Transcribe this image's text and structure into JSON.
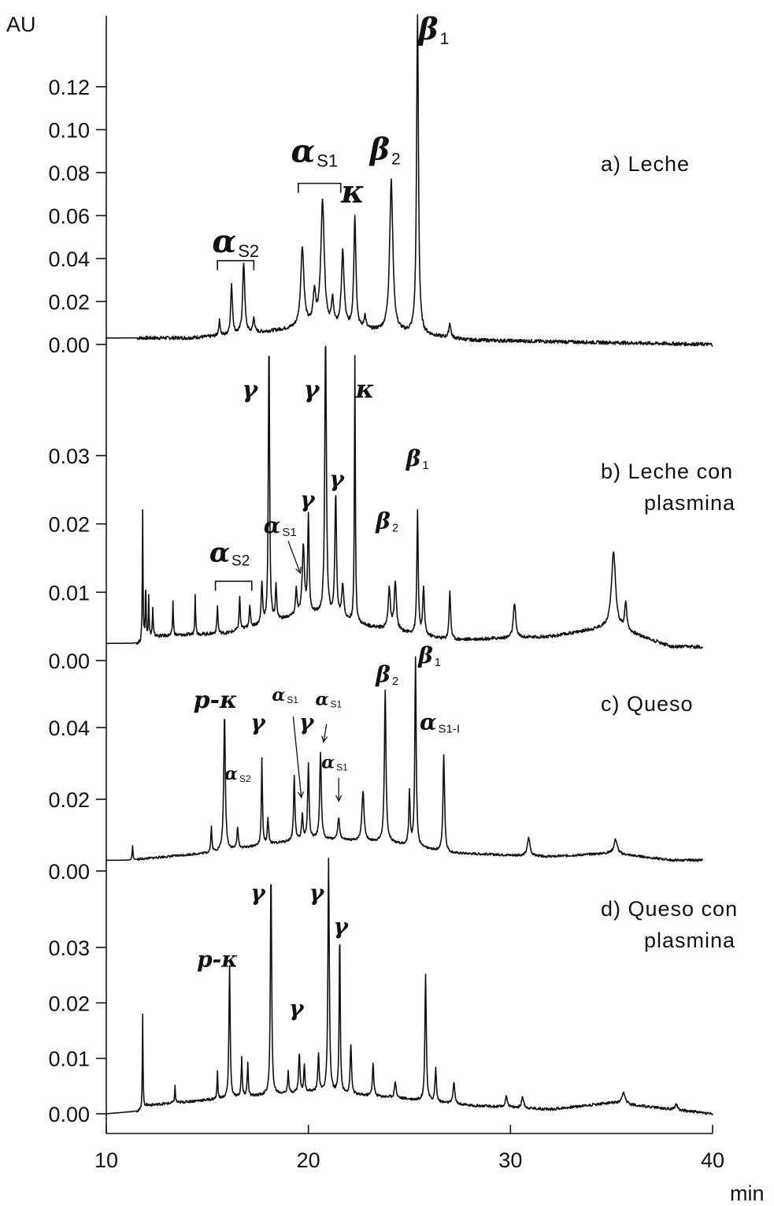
{
  "chart_data": {
    "type": "line",
    "y_unit": "AU",
    "x_unit": "min",
    "xlim": [
      10,
      40
    ],
    "x_ticks": [
      "10",
      "20",
      "30",
      "40"
    ],
    "grid": false,
    "panels": [
      {
        "id": "a",
        "title": [
          "a) Leche"
        ],
        "y_ticks": [
          "0.00",
          "0.02",
          "0.04",
          "0.06",
          "0.08",
          "0.10",
          "0.12"
        ],
        "y_tick_values": [
          0,
          0.02,
          0.04,
          0.06,
          0.08,
          0.1,
          0.12
        ],
        "ylim": [
          0,
          0.135
        ],
        "baseline": [
          [
            10,
            0.003
          ],
          [
            14,
            0.003
          ],
          [
            16,
            0.004
          ],
          [
            20,
            0.008
          ],
          [
            24,
            0.006
          ],
          [
            28,
            0.002
          ],
          [
            40,
            0.0
          ]
        ],
        "peaks": [
          {
            "x": 15.6,
            "y": 0.007,
            "w": 0.06
          },
          {
            "x": 16.2,
            "y": 0.023,
            "w": 0.07
          },
          {
            "x": 16.8,
            "y": 0.033,
            "w": 0.08
          },
          {
            "x": 17.3,
            "y": 0.007,
            "w": 0.06
          },
          {
            "x": 19.7,
            "y": 0.037,
            "w": 0.12
          },
          {
            "x": 20.3,
            "y": 0.015,
            "w": 0.1
          },
          {
            "x": 20.7,
            "y": 0.058,
            "w": 0.13
          },
          {
            "x": 21.2,
            "y": 0.012,
            "w": 0.08
          },
          {
            "x": 21.7,
            "y": 0.035,
            "w": 0.1
          },
          {
            "x": 22.3,
            "y": 0.052,
            "w": 0.08
          },
          {
            "x": 22.8,
            "y": 0.006,
            "w": 0.07
          },
          {
            "x": 24.1,
            "y": 0.07,
            "w": 0.12
          },
          {
            "x": 25.4,
            "y": 0.148,
            "w": 0.07
          },
          {
            "x": 27.0,
            "y": 0.007,
            "w": 0.07
          }
        ],
        "labels": [
          {
            "text": "α",
            "sub": "S2",
            "x": 16.4,
            "y": 0.043,
            "size": 40
          },
          {
            "text": "α",
            "sub": "S1",
            "x": 20.3,
            "y": 0.085,
            "size": 40
          },
          {
            "text": "κ",
            "sub": "",
            "x": 22.2,
            "y": 0.066,
            "size": 40
          },
          {
            "text": "β",
            "sub": "2",
            "x": 23.8,
            "y": 0.086,
            "size": 38
          },
          {
            "text": "β",
            "sub": "1",
            "x": 26.2,
            "y": 0.142,
            "size": 38
          }
        ],
        "brackets": [
          {
            "x1": 15.5,
            "x2": 17.3,
            "y": 0.039
          },
          {
            "x1": 19.5,
            "x2": 21.6,
            "y": 0.075
          }
        ],
        "arrows": []
      },
      {
        "id": "b",
        "title": [
          "b) Leche con",
          "plasmina"
        ],
        "y_ticks": [
          "0.00",
          "0.01",
          "0.02",
          "0.03"
        ],
        "y_tick_values": [
          0,
          0.01,
          0.02,
          0.03
        ],
        "ylim": [
          0,
          0.0395
        ],
        "baseline": [
          [
            10,
            0.0025
          ],
          [
            11.7,
            0.0025
          ],
          [
            12,
            0.0035
          ],
          [
            16,
            0.004
          ],
          [
            20,
            0.007
          ],
          [
            23,
            0.005
          ],
          [
            27,
            0.003
          ],
          [
            32,
            0.0035
          ],
          [
            35,
            0.005
          ],
          [
            38,
            0.002
          ],
          [
            39.5,
            0.002
          ]
        ],
        "peaks": [
          {
            "x": 11.8,
            "y": 0.019,
            "w": 0.025
          },
          {
            "x": 11.95,
            "y": 0.008,
            "w": 0.025
          },
          {
            "x": 12.1,
            "y": 0.006,
            "w": 0.025
          },
          {
            "x": 12.3,
            "y": 0.004,
            "w": 0.03
          },
          {
            "x": 13.3,
            "y": 0.005,
            "w": 0.03
          },
          {
            "x": 14.4,
            "y": 0.006,
            "w": 0.03
          },
          {
            "x": 15.5,
            "y": 0.004,
            "w": 0.04
          },
          {
            "x": 16.6,
            "y": 0.005,
            "w": 0.04
          },
          {
            "x": 17.1,
            "y": 0.003,
            "w": 0.05
          },
          {
            "x": 17.7,
            "y": 0.006,
            "w": 0.05
          },
          {
            "x": 18.05,
            "y": 0.042,
            "w": 0.045
          },
          {
            "x": 18.4,
            "y": 0.005,
            "w": 0.05
          },
          {
            "x": 19.4,
            "y": 0.004,
            "w": 0.05
          },
          {
            "x": 19.75,
            "y": 0.01,
            "w": 0.08
          },
          {
            "x": 20.0,
            "y": 0.014,
            "w": 0.05
          },
          {
            "x": 20.85,
            "y": 0.041,
            "w": 0.06
          },
          {
            "x": 21.35,
            "y": 0.018,
            "w": 0.06
          },
          {
            "x": 21.7,
            "y": 0.005,
            "w": 0.08
          },
          {
            "x": 22.3,
            "y": 0.039,
            "w": 0.035
          },
          {
            "x": 24.0,
            "y": 0.006,
            "w": 0.08
          },
          {
            "x": 24.3,
            "y": 0.007,
            "w": 0.08
          },
          {
            "x": 25.4,
            "y": 0.018,
            "w": 0.05
          },
          {
            "x": 25.7,
            "y": 0.007,
            "w": 0.06
          },
          {
            "x": 27.0,
            "y": 0.007,
            "w": 0.06
          },
          {
            "x": 30.2,
            "y": 0.005,
            "w": 0.09
          },
          {
            "x": 35.1,
            "y": 0.011,
            "w": 0.15
          },
          {
            "x": 35.7,
            "y": 0.004,
            "w": 0.08
          }
        ],
        "labels": [
          {
            "text": "γ",
            "sub": "",
            "x": 17.1,
            "y": 0.0385,
            "size": 30
          },
          {
            "text": "γ",
            "sub": "",
            "x": 20.15,
            "y": 0.0385,
            "size": 30
          },
          {
            "text": "κ",
            "sub": "",
            "x": 22.8,
            "y": 0.0385,
            "size": 32
          },
          {
            "text": "γ",
            "sub": "",
            "x": 19.95,
            "y": 0.0225,
            "size": 28
          },
          {
            "text": "γ",
            "sub": "",
            "x": 21.4,
            "y": 0.0255,
            "size": 28
          },
          {
            "text": "α",
            "sub": "S1",
            "x": 18.6,
            "y": 0.0187,
            "size": 28
          },
          {
            "text": "α",
            "sub": "S2",
            "x": 16.1,
            "y": 0.0145,
            "size": 34
          },
          {
            "text": "β",
            "sub": "2",
            "x": 23.9,
            "y": 0.0193,
            "size": 28
          },
          {
            "text": "β",
            "sub": "1",
            "x": 25.4,
            "y": 0.0285,
            "size": 28
          }
        ],
        "brackets": [
          {
            "x1": 15.4,
            "x2": 17.2,
            "y": 0.0116
          }
        ],
        "arrows": [
          {
            "x1": 19.0,
            "y1": 0.0175,
            "x2": 19.6,
            "y2": 0.0128
          }
        ]
      },
      {
        "id": "c",
        "title": [
          "c) Queso"
        ],
        "y_ticks": [
          "0.00",
          "0.02",
          "0.04"
        ],
        "y_tick_values": [
          0,
          0.02,
          0.04
        ],
        "ylim": [
          0,
          0.0525
        ],
        "baseline": [
          [
            10,
            0.003
          ],
          [
            11.2,
            0.003
          ],
          [
            12,
            0.0035
          ],
          [
            15,
            0.005
          ],
          [
            20,
            0.009
          ],
          [
            24,
            0.008
          ],
          [
            27,
            0.005
          ],
          [
            32,
            0.004
          ],
          [
            35,
            0.005
          ],
          [
            38,
            0.003
          ],
          [
            39.5,
            0.003
          ]
        ],
        "peaks": [
          {
            "x": 11.3,
            "y": 0.004,
            "w": 0.03
          },
          {
            "x": 15.2,
            "y": 0.007,
            "w": 0.04
          },
          {
            "x": 15.85,
            "y": 0.038,
            "w": 0.06
          },
          {
            "x": 16.5,
            "y": 0.006,
            "w": 0.05
          },
          {
            "x": 17.7,
            "y": 0.024,
            "w": 0.04
          },
          {
            "x": 18.0,
            "y": 0.007,
            "w": 0.05
          },
          {
            "x": 19.3,
            "y": 0.018,
            "w": 0.05
          },
          {
            "x": 19.7,
            "y": 0.007,
            "w": 0.05
          },
          {
            "x": 20.0,
            "y": 0.021,
            "w": 0.05
          },
          {
            "x": 20.6,
            "y": 0.024,
            "w": 0.06
          },
          {
            "x": 21.5,
            "y": 0.006,
            "w": 0.07
          },
          {
            "x": 22.7,
            "y": 0.014,
            "w": 0.08
          },
          {
            "x": 23.8,
            "y": 0.042,
            "w": 0.06
          },
          {
            "x": 25.0,
            "y": 0.015,
            "w": 0.05
          },
          {
            "x": 25.3,
            "y": 0.053,
            "w": 0.05
          },
          {
            "x": 26.7,
            "y": 0.027,
            "w": 0.06
          },
          {
            "x": 30.9,
            "y": 0.005,
            "w": 0.1
          },
          {
            "x": 35.2,
            "y": 0.004,
            "w": 0.12
          }
        ],
        "labels": [
          {
            "text": "p-κ",
            "sub": "",
            "x": 15.4,
            "y": 0.0455,
            "size": 30
          },
          {
            "text": "γ",
            "sub": "",
            "x": 17.5,
            "y": 0.0393,
            "size": 28
          },
          {
            "text": "α",
            "sub": "S2",
            "x": 16.5,
            "y": 0.0255,
            "size": 22
          },
          {
            "text": "α",
            "sub": "S1",
            "x": 18.85,
            "y": 0.0475,
            "size": 22
          },
          {
            "text": "γ",
            "sub": "",
            "x": 19.9,
            "y": 0.0395,
            "size": 28
          },
          {
            "text": "α",
            "sub": "S1",
            "x": 21.0,
            "y": 0.0463,
            "size": 22
          },
          {
            "text": "α",
            "sub": "S1",
            "x": 21.3,
            "y": 0.0287,
            "size": 22
          },
          {
            "text": "β",
            "sub": "2",
            "x": 23.9,
            "y": 0.0528,
            "size": 28
          },
          {
            "text": "β",
            "sub": "1",
            "x": 26.0,
            "y": 0.058,
            "size": 28
          },
          {
            "text": "α",
            "sub": "S1-I",
            "x": 26.5,
            "y": 0.0394,
            "size": 28
          }
        ],
        "brackets": [],
        "arrows": [
          {
            "x1": 19.25,
            "y1": 0.043,
            "x2": 19.65,
            "y2": 0.0205
          },
          {
            "x1": 20.9,
            "y1": 0.041,
            "x2": 20.75,
            "y2": 0.036
          },
          {
            "x1": 21.5,
            "y1": 0.026,
            "x2": 21.5,
            "y2": 0.0195
          }
        ]
      },
      {
        "id": "d",
        "title": [
          "d) Queso con",
          "plasmina"
        ],
        "y_ticks": [
          "0.00",
          "0.01",
          "0.02",
          "0.03"
        ],
        "y_tick_values": [
          0,
          0.01,
          0.02,
          0.03
        ],
        "ylim": [
          0,
          0.0395
        ],
        "baseline": [
          [
            10,
            0.0
          ],
          [
            11.7,
            0.0005
          ],
          [
            12,
            0.0015
          ],
          [
            15,
            0.0025
          ],
          [
            20,
            0.004
          ],
          [
            24,
            0.003
          ],
          [
            28,
            0.0015
          ],
          [
            32,
            0.0008
          ],
          [
            35,
            0.002
          ],
          [
            38,
            0.0008
          ],
          [
            40,
            0.0
          ]
        ],
        "peaks": [
          {
            "x": 11.8,
            "y": 0.017,
            "w": 0.025
          },
          {
            "x": 13.4,
            "y": 0.003,
            "w": 0.03
          },
          {
            "x": 15.5,
            "y": 0.005,
            "w": 0.03
          },
          {
            "x": 16.1,
            "y": 0.024,
            "w": 0.045
          },
          {
            "x": 16.7,
            "y": 0.007,
            "w": 0.04
          },
          {
            "x": 17.0,
            "y": 0.006,
            "w": 0.04
          },
          {
            "x": 18.15,
            "y": 0.041,
            "w": 0.045
          },
          {
            "x": 19.0,
            "y": 0.004,
            "w": 0.04
          },
          {
            "x": 19.55,
            "y": 0.007,
            "w": 0.05
          },
          {
            "x": 19.8,
            "y": 0.005,
            "w": 0.04
          },
          {
            "x": 20.5,
            "y": 0.007,
            "w": 0.05
          },
          {
            "x": 21.0,
            "y": 0.042,
            "w": 0.05
          },
          {
            "x": 21.55,
            "y": 0.029,
            "w": 0.04
          },
          {
            "x": 22.1,
            "y": 0.009,
            "w": 0.05
          },
          {
            "x": 23.2,
            "y": 0.006,
            "w": 0.05
          },
          {
            "x": 24.3,
            "y": 0.003,
            "w": 0.06
          },
          {
            "x": 25.8,
            "y": 0.023,
            "w": 0.05
          },
          {
            "x": 26.3,
            "y": 0.006,
            "w": 0.05
          },
          {
            "x": 27.2,
            "y": 0.004,
            "w": 0.06
          },
          {
            "x": 29.8,
            "y": 0.002,
            "w": 0.08
          },
          {
            "x": 30.6,
            "y": 0.002,
            "w": 0.08
          },
          {
            "x": 35.6,
            "y": 0.002,
            "w": 0.12
          },
          {
            "x": 38.2,
            "y": 0.001,
            "w": 0.1
          }
        ],
        "labels": [
          {
            "text": "γ",
            "sub": "",
            "x": 17.5,
            "y": 0.0385,
            "size": 28
          },
          {
            "text": "γ",
            "sub": "",
            "x": 20.4,
            "y": 0.0385,
            "size": 28
          },
          {
            "text": "γ",
            "sub": "",
            "x": 21.6,
            "y": 0.0325,
            "size": 28
          },
          {
            "text": "p-κ",
            "sub": "",
            "x": 15.5,
            "y": 0.0265,
            "size": 28
          },
          {
            "text": "γ",
            "sub": "",
            "x": 19.4,
            "y": 0.0177,
            "size": 28
          }
        ],
        "brackets": [],
        "arrows": []
      }
    ]
  }
}
